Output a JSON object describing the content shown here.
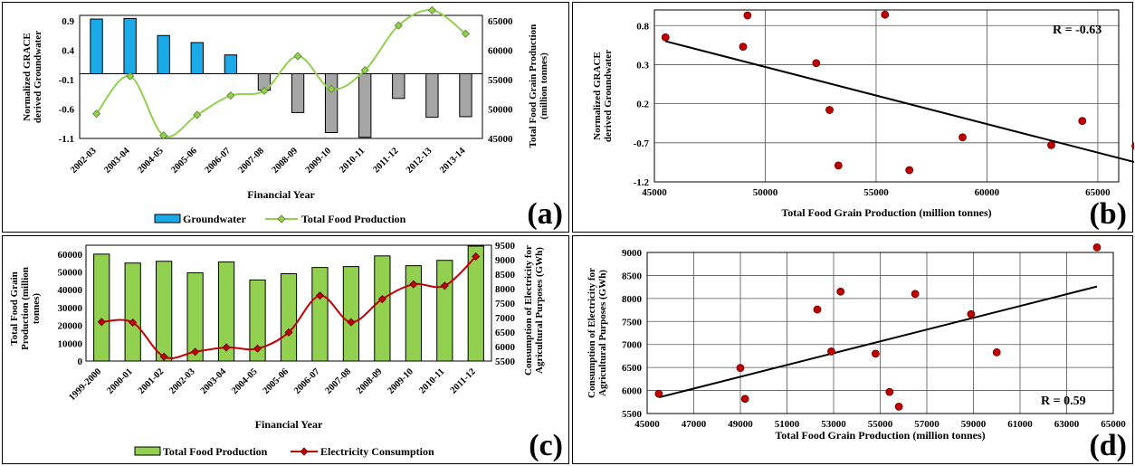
{
  "chart_data": [
    {
      "panel": "(a)",
      "type": "bar+line",
      "xlabel": "Financial Year",
      "ylabel": "Normalized GRACE derived Groundwater",
      "y2label": "Total Food Grain Production (million tonnes)",
      "categories": [
        "2002-03",
        "2003-04",
        "2004-05",
        "2005-06",
        "2006-07",
        "2007-08",
        "2008-09",
        "2009-10",
        "2010-11",
        "2011-12",
        "2012-13",
        "2013-14"
      ],
      "ylim": [
        -1.1,
        1.0
      ],
      "yticks": [
        "0.9",
        "0.4",
        "-0.1",
        "-0.6",
        "-1.1"
      ],
      "y2lim": [
        45000,
        67000
      ],
      "y2ticks": [
        "65000",
        "60000",
        "55000",
        "50000",
        "45000"
      ],
      "series": [
        {
          "name": "Groundwater",
          "type": "bar",
          "values": [
            0.93,
            0.94,
            0.65,
            0.53,
            0.32,
            -0.28,
            -0.66,
            -1.0,
            -1.08,
            -0.42,
            -0.74,
            -0.73
          ],
          "colors": {
            "positive": "#1aaae8",
            "negative": "#a6a6a6"
          }
        },
        {
          "name": "Total  Food Production",
          "type": "line",
          "values": [
            49200,
            55600,
            45500,
            49000,
            52300,
            53100,
            59000,
            53400,
            56600,
            64200,
            66800,
            62800
          ],
          "color": "#92d050"
        }
      ],
      "legend": "bottom",
      "grid": false
    },
    {
      "panel": "(b)",
      "type": "scatter",
      "xlabel": "Total Food Grain Production (million tonnes)",
      "ylabel": "Normalized GRACE derived Groundwater",
      "xlim": [
        45000,
        67000
      ],
      "xticks": [
        "45000",
        "50000",
        "55000",
        "60000",
        "65000"
      ],
      "ylim": [
        -1.2,
        1.0
      ],
      "yticks": [
        "0.8",
        "0.3",
        "0.2",
        "-0.7",
        "-1.2"
      ],
      "points": [
        [
          45500,
          0.65
        ],
        [
          49200,
          0.93
        ],
        [
          49000,
          0.53
        ],
        [
          52300,
          0.32
        ],
        [
          52900,
          -0.28
        ],
        [
          53300,
          -0.99
        ],
        [
          55400,
          0.94
        ],
        [
          56500,
          -1.05
        ],
        [
          58900,
          -0.63
        ],
        [
          62900,
          -0.73
        ],
        [
          64300,
          -0.42
        ],
        [
          66700,
          -0.74
        ]
      ],
      "trendline": [
        [
          45500,
          0.6
        ],
        [
          66700,
          -0.95
        ]
      ],
      "annotation": "R = -0.63",
      "grid": true
    },
    {
      "panel": "(c)",
      "type": "bar+line",
      "xlabel": "Financial Year",
      "ylabel": "Total Food Grain Production (million tonnes)",
      "y2label": "Consumption of Electricity for Agricultural Purposes  (GWh)",
      "categories": [
        "1999-2000",
        "2000-01",
        "2001-02",
        "2002-03",
        "2003-04",
        "2004-05",
        "2005-06",
        "2006-07",
        "2007-08",
        "2008-09",
        "2009-10",
        "2010-11",
        "2011-12"
      ],
      "ylim": [
        0,
        65000
      ],
      "yticks": [
        "60000",
        "50000",
        "40000",
        "30000",
        "20000",
        "10000",
        "0"
      ],
      "y2lim": [
        5500,
        9500
      ],
      "y2ticks": [
        "9500",
        "9000",
        "8500",
        "8000",
        "7500",
        "7000",
        "6500",
        "6000",
        "5500"
      ],
      "series": [
        {
          "name": "Total  Food Production",
          "type": "bar",
          "values": [
            60000,
            55000,
            56000,
            49500,
            55600,
            45500,
            49000,
            52500,
            53000,
            59000,
            53500,
            56500,
            64500
          ],
          "color": "#92d050"
        },
        {
          "name": "Electricity Consumption",
          "type": "line",
          "values": [
            6850,
            6830,
            5650,
            5820,
            5970,
            5930,
            6490,
            7760,
            6840,
            7640,
            8150,
            8100,
            9110
          ],
          "color": "#c00000"
        }
      ],
      "legend": "bottom",
      "grid": false
    },
    {
      "panel": "(d)",
      "type": "scatter",
      "xlabel": "Total Food Grain Production (million tonnes)",
      "ylabel": "Consumption of Electricity for Agricultural Purposes  (GWh)",
      "xlim": [
        45000,
        65000
      ],
      "xticks": [
        "45000",
        "47000",
        "49000",
        "51000",
        "53000",
        "55000",
        "57000",
        "59000",
        "61000",
        "63000",
        "65000"
      ],
      "ylim": [
        5500,
        9000
      ],
      "yticks": [
        "9000",
        "8500",
        "8000",
        "7500",
        "7000",
        "6500",
        "6000",
        "5500"
      ],
      "points": [
        [
          45500,
          5930
        ],
        [
          49000,
          6490
        ],
        [
          49200,
          5820
        ],
        [
          52300,
          7760
        ],
        [
          52900,
          6850
        ],
        [
          53300,
          8150
        ],
        [
          54800,
          6800
        ],
        [
          55400,
          5970
        ],
        [
          55800,
          5650
        ],
        [
          56500,
          8100
        ],
        [
          58900,
          7660
        ],
        [
          60000,
          6830
        ],
        [
          64300,
          9110
        ]
      ],
      "trendline": [
        [
          45500,
          5850
        ],
        [
          64300,
          8260
        ]
      ],
      "annotation": "R = 0.59",
      "grid": true
    }
  ],
  "panel_labels": {
    "a": "(a)",
    "b": "(b)",
    "c": "(c)",
    "d": "(d)"
  }
}
